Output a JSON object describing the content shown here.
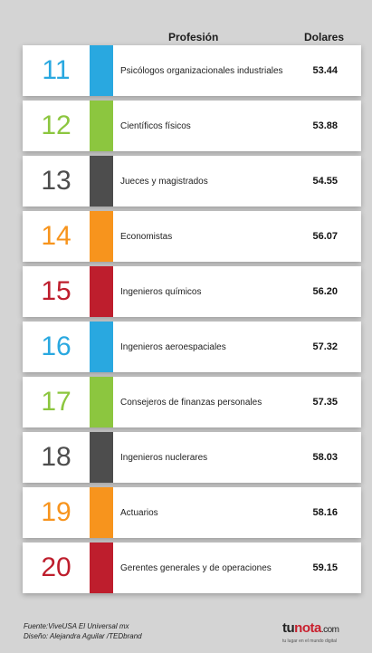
{
  "header": {
    "profession_label": "Profesión",
    "dollars_label": "Dolares"
  },
  "rows": [
    {
      "rank": "11",
      "profession": "Psicólogos organizacionales industriales",
      "value": "53.44",
      "color": "#29a8e0"
    },
    {
      "rank": "12",
      "profession": "Científicos físicos",
      "value": "53.88",
      "color": "#8cc63f"
    },
    {
      "rank": "13",
      "profession": "Jueces y magistrados",
      "value": "54.55",
      "color": "#4d4d4d"
    },
    {
      "rank": "14",
      "profession": "Economistas",
      "value": "56.07",
      "color": "#f7941d"
    },
    {
      "rank": "15",
      "profession": "Ingenieros químicos",
      "value": "56.20",
      "color": "#be1e2d"
    },
    {
      "rank": "16",
      "profession": "Ingenieros aeroespaciales",
      "value": "57.32",
      "color": "#29a8e0"
    },
    {
      "rank": "17",
      "profession": "Consejeros de finanzas personales",
      "value": "57.35",
      "color": "#8cc63f"
    },
    {
      "rank": "18",
      "profession": "Ingenieros nuclerares",
      "value": "58.03",
      "color": "#4d4d4d"
    },
    {
      "rank": "19",
      "profession": "Actuarios",
      "value": "58.16",
      "color": "#f7941d"
    },
    {
      "rank": "20",
      "profession": "Gerentes generales y de operaciones",
      "value": "59.15",
      "color": "#be1e2d"
    }
  ],
  "footer": {
    "source": "Fuente:ViveUSA El Universal mx",
    "design": "Diseño: Alejandra Aguilar /TEDbrand"
  },
  "brand": {
    "name_part1": "tu",
    "name_part2": "nota",
    "name_part3": ".com",
    "tagline": "tu lugar en el mundo digital"
  }
}
